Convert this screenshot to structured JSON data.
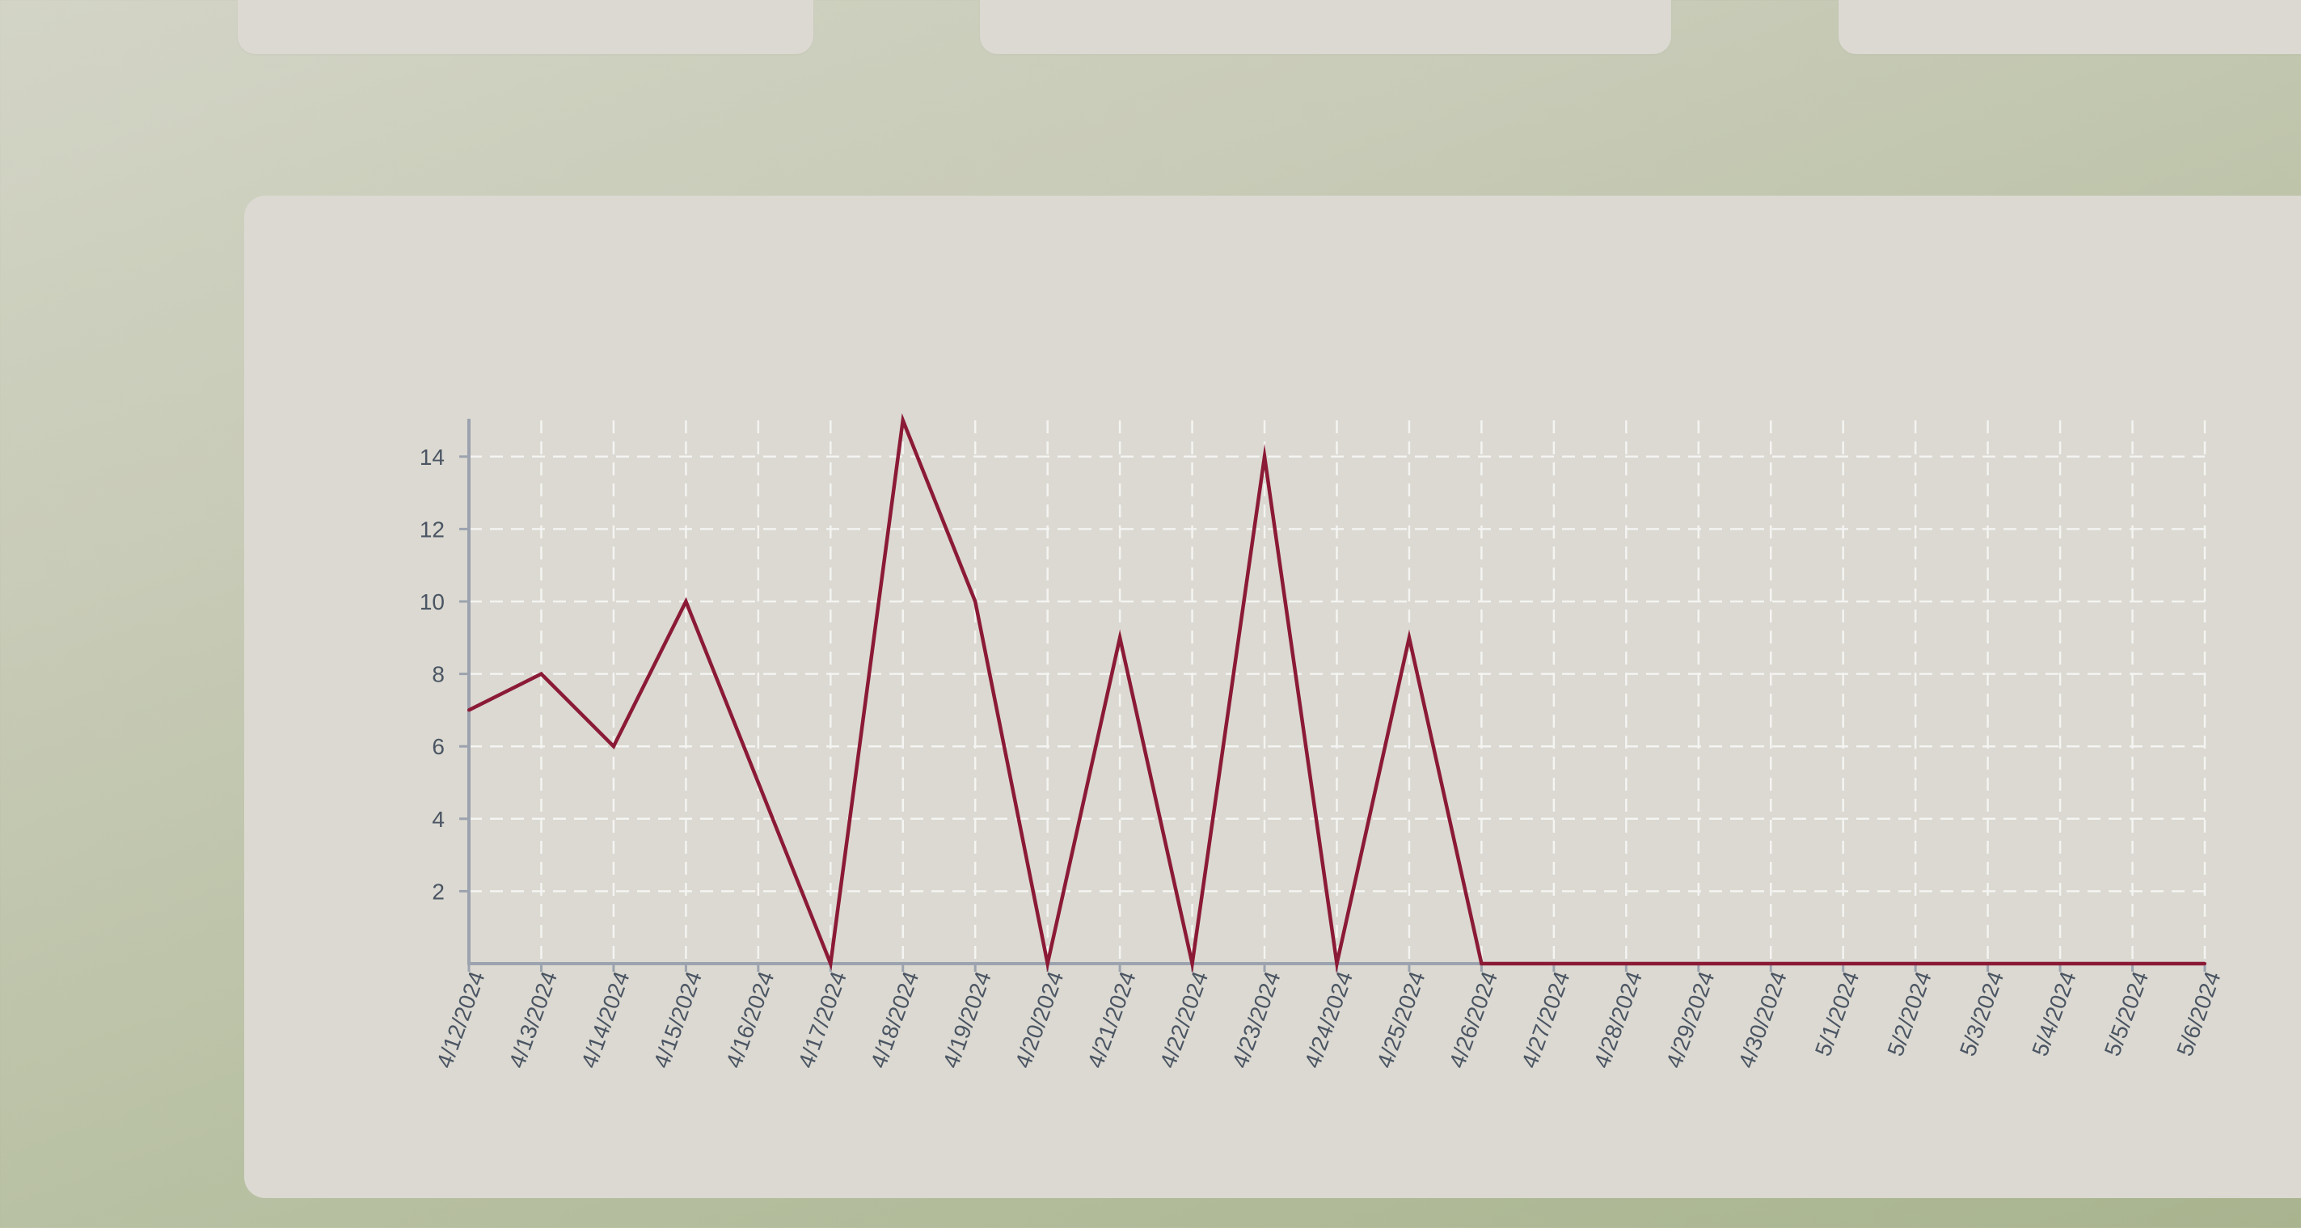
{
  "chart_data": {
    "type": "line",
    "title": "",
    "xlabel": "",
    "ylabel": "",
    "x": [
      "4/12/2024",
      "4/13/2024",
      "4/14/2024",
      "4/15/2024",
      "4/16/2024",
      "4/17/2024",
      "4/18/2024",
      "4/19/2024",
      "4/20/2024",
      "4/21/2024",
      "4/22/2024",
      "4/23/2024",
      "4/24/2024",
      "4/25/2024",
      "4/26/2024",
      "4/27/2024",
      "4/28/2024",
      "4/29/2024",
      "4/30/2024",
      "5/1/2024",
      "5/2/2024",
      "5/3/2024",
      "5/4/2024",
      "5/5/2024",
      "5/6/2024"
    ],
    "series": [
      {
        "values": [
          7,
          8,
          6,
          10,
          5,
          0,
          15,
          10,
          0,
          9,
          0,
          14,
          0,
          9,
          0,
          0,
          0,
          0,
          0,
          0,
          0,
          0,
          0,
          0,
          0
        ]
      }
    ],
    "ylim": [
      0,
      15
    ],
    "yticks": [
      2,
      4,
      6,
      8,
      10,
      12,
      14
    ],
    "grid": true,
    "line_color": "#8b1a36",
    "grid_color": "#f4f4f2",
    "axis_color": "#9ca3af",
    "tick_label_color": "#4b5563"
  }
}
